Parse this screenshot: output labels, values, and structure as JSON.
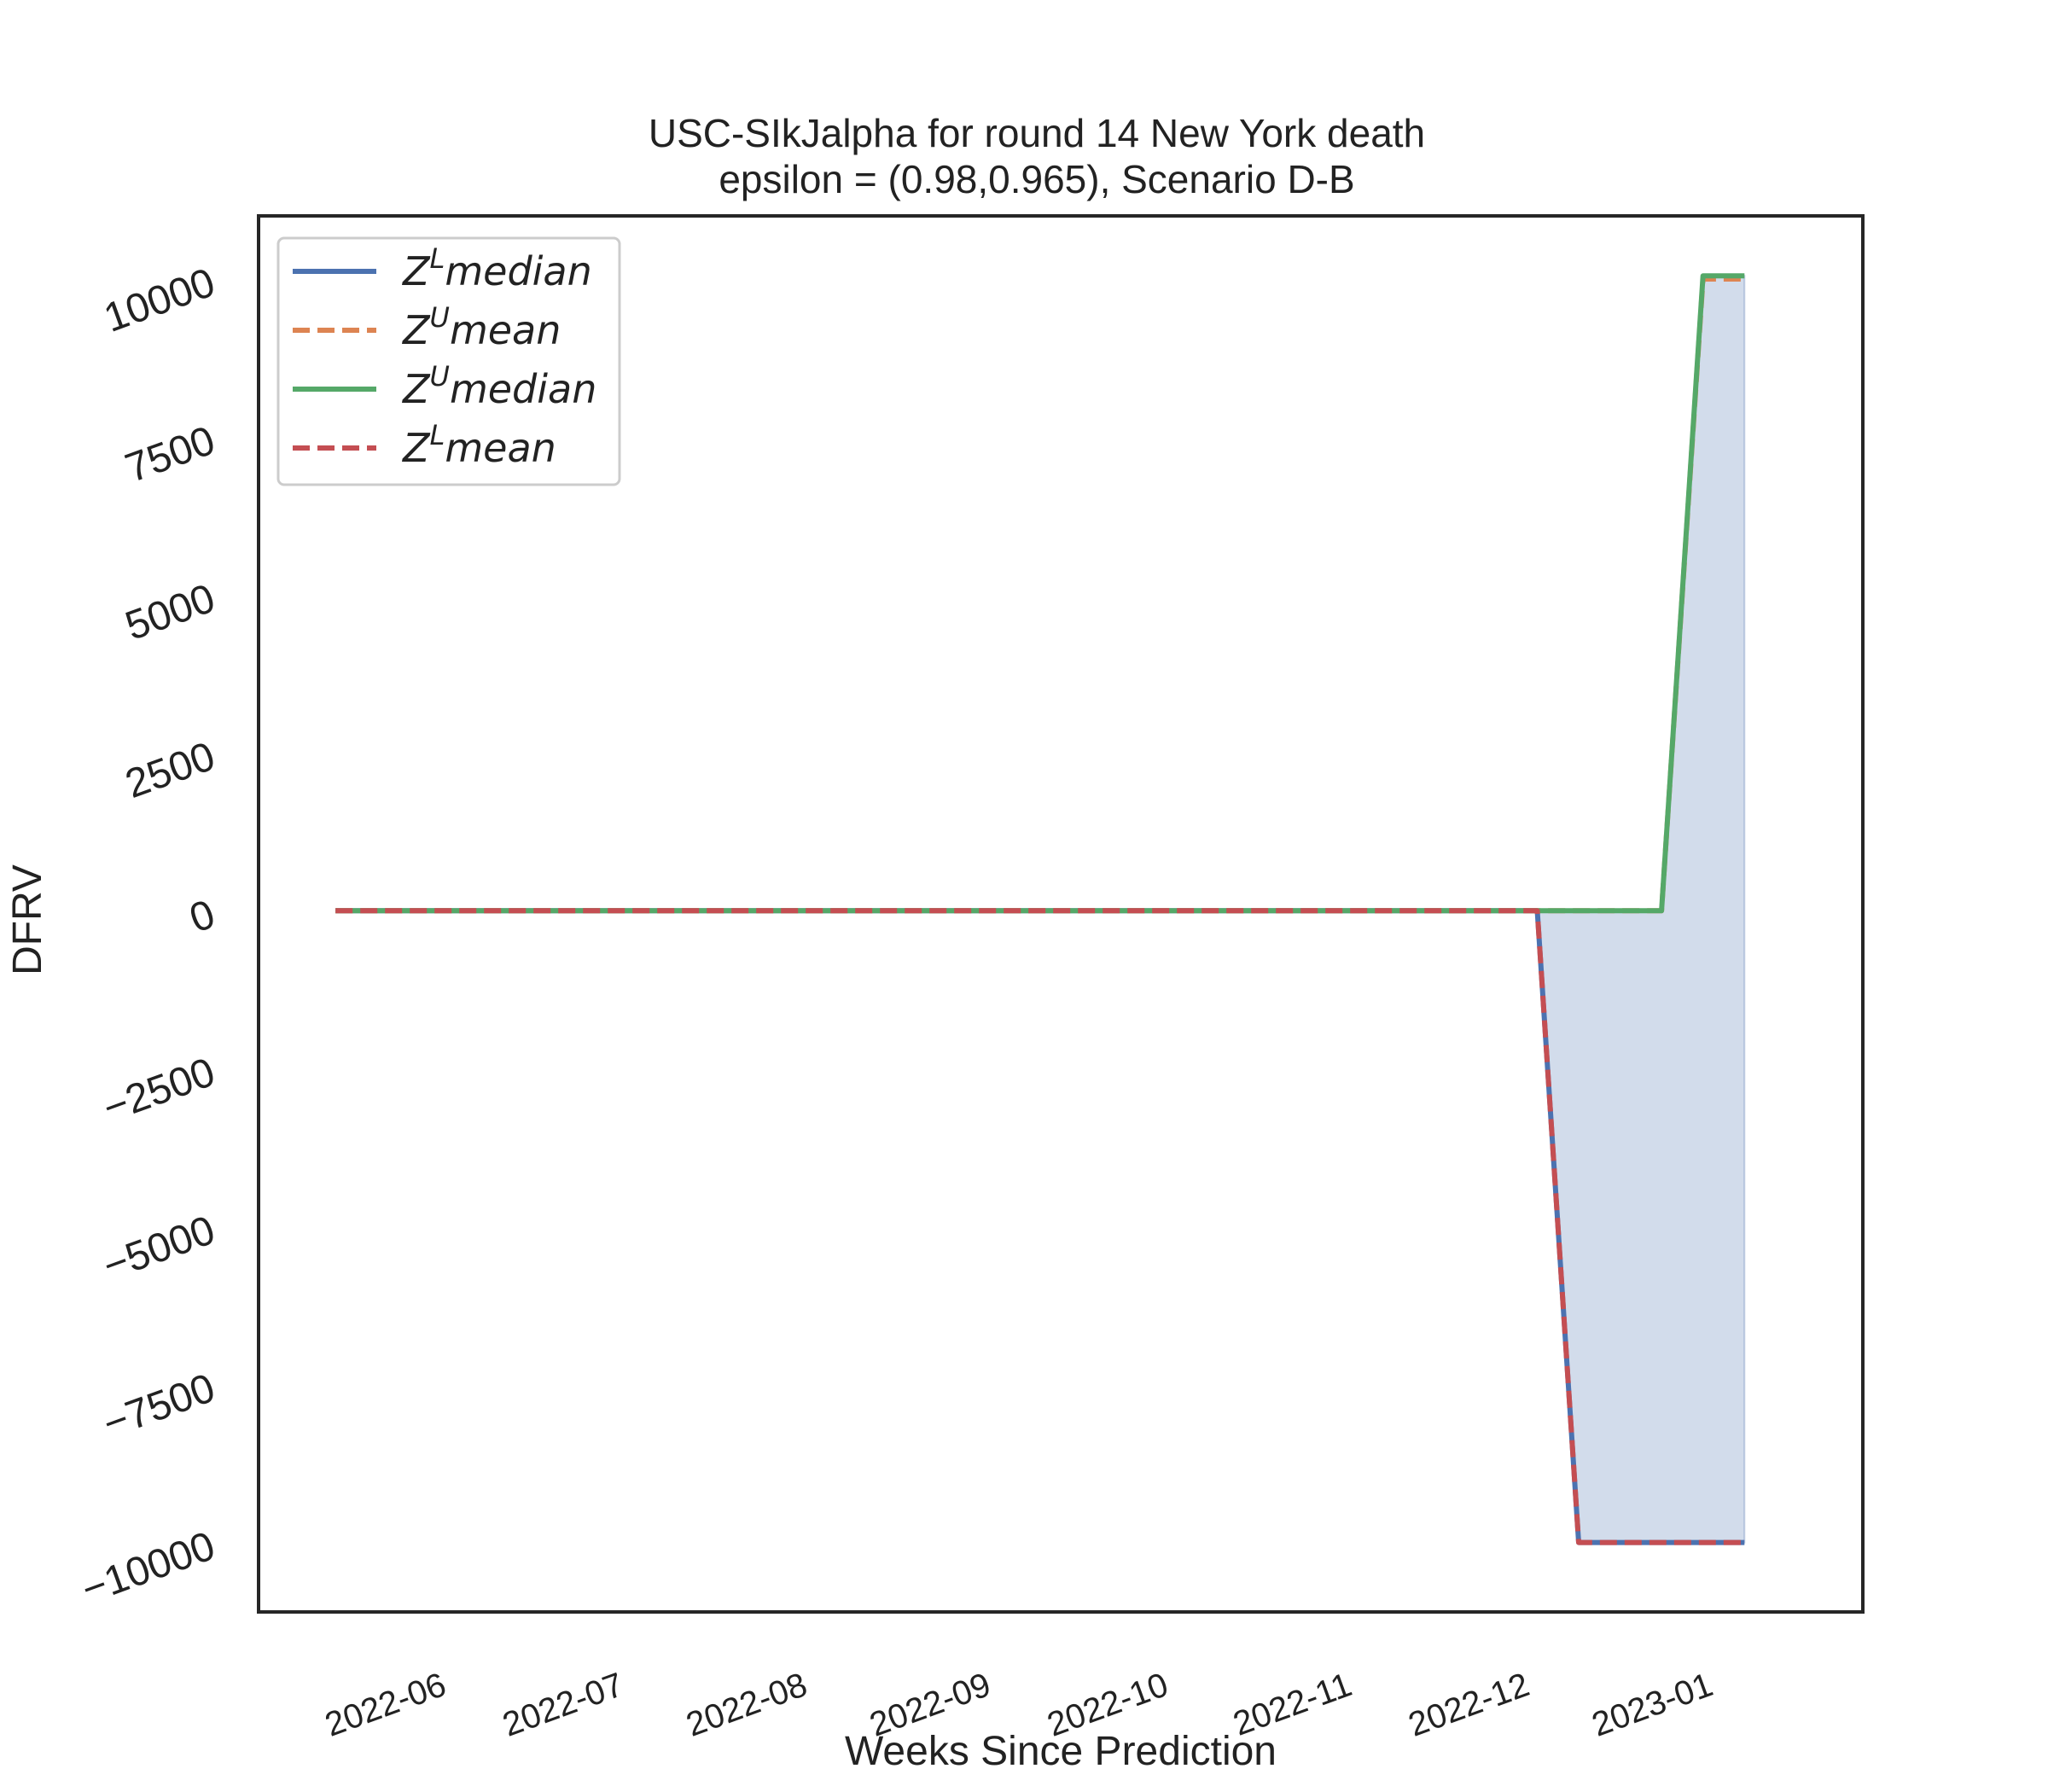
{
  "chart_data": {
    "type": "line",
    "title": "USC-SIkJalpha for round 14 New York  death",
    "subtitle": "epsilon = (0.98,0.965), Scenario D-B",
    "xlabel": "Weeks Since Prediction",
    "ylabel": "DFRV",
    "ylim": [
      -11100,
      11000
    ],
    "xlim": [
      "2022-05-04",
      "2023-01-30"
    ],
    "yticks": [
      10000,
      7500,
      5000,
      2500,
      0,
      -2500,
      -5000,
      -7500,
      -10000
    ],
    "yticklabels": [
      "10000",
      "7500",
      "5000",
      "2500",
      "0",
      "−2500",
      "−5000",
      "−7500",
      "−10000"
    ],
    "xticks": [
      "2022-06-01",
      "2022-07-01",
      "2022-08-01",
      "2022-09-01",
      "2022-10-01",
      "2022-11-01",
      "2022-12-01",
      "2023-01-01"
    ],
    "xticklabels": [
      "2022-06",
      "2022-07",
      "2022-08",
      "2022-09",
      "2022-10",
      "2022-11",
      "2022-12",
      "2023-01"
    ],
    "grid": false,
    "legend_position": "top-left",
    "x": [
      "2022-05-17",
      "2022-05-24",
      "2022-05-31",
      "2022-06-07",
      "2022-06-14",
      "2022-06-21",
      "2022-06-28",
      "2022-07-05",
      "2022-07-12",
      "2022-07-19",
      "2022-07-26",
      "2022-08-02",
      "2022-08-09",
      "2022-08-16",
      "2022-08-23",
      "2022-08-30",
      "2022-09-06",
      "2022-09-13",
      "2022-09-20",
      "2022-09-27",
      "2022-10-04",
      "2022-10-11",
      "2022-10-18",
      "2022-10-25",
      "2022-11-01",
      "2022-11-08",
      "2022-11-15",
      "2022-11-22",
      "2022-11-29",
      "2022-12-06",
      "2022-12-13",
      "2022-12-20",
      "2022-12-27",
      "2023-01-03",
      "2023-01-10"
    ],
    "series": [
      {
        "name": "Z^L median",
        "legend_base": "Z",
        "legend_sup": "L",
        "legend_rest": "median",
        "color": "#4c72b0",
        "dash": "solid",
        "values": [
          0,
          0,
          0,
          0,
          0,
          0,
          0,
          0,
          0,
          0,
          0,
          0,
          0,
          0,
          0,
          0,
          0,
          0,
          0,
          0,
          0,
          0,
          0,
          0,
          0,
          0,
          0,
          0,
          0,
          0,
          -10000,
          -10000,
          -10000,
          -10000,
          -10000
        ]
      },
      {
        "name": "Z^U mean",
        "legend_base": "Z",
        "legend_sup": "U",
        "legend_rest": "mean",
        "color": "#dd8452",
        "dash": "dashed",
        "values": [
          0,
          0,
          0,
          0,
          0,
          0,
          0,
          0,
          0,
          0,
          0,
          0,
          0,
          0,
          0,
          0,
          0,
          0,
          0,
          0,
          0,
          0,
          0,
          0,
          0,
          0,
          0,
          0,
          0,
          0,
          0,
          0,
          0,
          10000,
          10000
        ]
      },
      {
        "name": "Z^U median",
        "legend_base": "Z",
        "legend_sup": "U",
        "legend_rest": "median",
        "color": "#55a868",
        "dash": "solid",
        "values": [
          0,
          0,
          0,
          0,
          0,
          0,
          0,
          0,
          0,
          0,
          0,
          0,
          0,
          0,
          0,
          0,
          0,
          0,
          0,
          0,
          0,
          0,
          0,
          0,
          0,
          0,
          0,
          0,
          0,
          0,
          0,
          0,
          0,
          10050,
          10050
        ]
      },
      {
        "name": "Z^L mean",
        "legend_base": "Z",
        "legend_sup": "L",
        "legend_rest": "mean",
        "color": "#c44e52",
        "dash": "dashed",
        "values": [
          0,
          0,
          0,
          0,
          0,
          0,
          0,
          0,
          0,
          0,
          0,
          0,
          0,
          0,
          0,
          0,
          0,
          0,
          0,
          0,
          0,
          0,
          0,
          0,
          0,
          0,
          0,
          0,
          0,
          0,
          -10000,
          -10000,
          -10000,
          -10000,
          -10000
        ]
      }
    ],
    "fill_between": {
      "lower": "Z^L median",
      "upper": "Z^U median",
      "color": "#4c72b0",
      "opacity": 0.25
    }
  }
}
